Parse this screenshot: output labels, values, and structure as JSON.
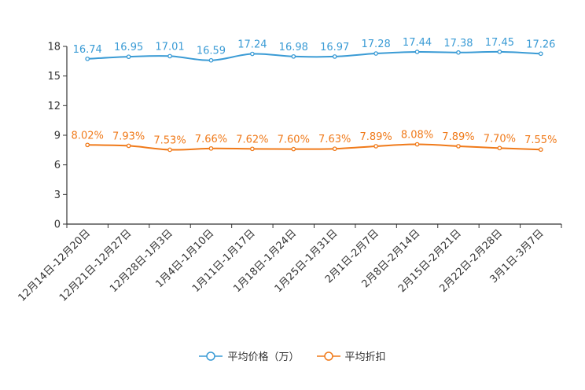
{
  "chart_data": {
    "type": "line",
    "categories": [
      "12月14日-12月20日",
      "12月21日-12月27日",
      "12月28日-1月3日",
      "1月4日-1月10日",
      "1月11日-1月17日",
      "1月18日-1月24日",
      "1月25日-1月31日",
      "2月1日-2月7日",
      "2月8日-2月14日",
      "2月15日-2月21日",
      "2月22日-2月28日",
      "3月1日-3月7日"
    ],
    "y_axis": {
      "min": 0,
      "max": 18,
      "ticks": [
        0,
        3,
        6,
        9,
        12,
        15,
        18
      ]
    },
    "series": [
      {
        "name": "平均价格（万）",
        "color": "#3a9bd5",
        "values": [
          16.74,
          16.95,
          17.01,
          16.59,
          17.24,
          16.98,
          16.97,
          17.28,
          17.44,
          17.38,
          17.45,
          17.26
        ],
        "labels": [
          "16.74",
          "16.95",
          "17.01",
          "16.59",
          "17.24",
          "16.98",
          "16.97",
          "17.28",
          "17.44",
          "17.38",
          "17.45",
          "17.26"
        ]
      },
      {
        "name": "平均折扣",
        "color": "#f07a1a",
        "values": [
          8.02,
          7.93,
          7.53,
          7.66,
          7.62,
          7.6,
          7.63,
          7.89,
          8.08,
          7.89,
          7.7,
          7.55
        ],
        "labels": [
          "8.02%",
          "7.93%",
          "7.53%",
          "7.66%",
          "7.62%",
          "7.60%",
          "7.63%",
          "7.89%",
          "8.08%",
          "7.89%",
          "7.70%",
          "7.55%"
        ]
      }
    ],
    "legend_position": "bottom-center",
    "grid": false
  },
  "legend": {
    "items": [
      {
        "label": "平均价格（万）",
        "color": "#3a9bd5"
      },
      {
        "label": "平均折扣",
        "color": "#f07a1a"
      }
    ]
  }
}
